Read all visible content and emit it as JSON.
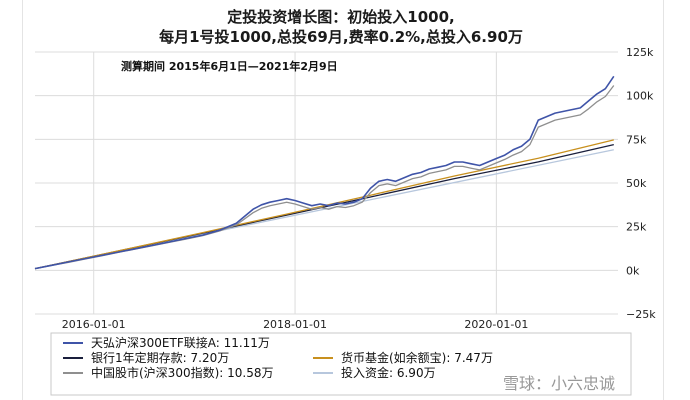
{
  "chart_data": {
    "type": "line",
    "title": [
      "定投投资增长图：初始投入1000,",
      "每月1号投1000,总投69月,费率0.2%,总投入6.90万"
    ],
    "subtitle": "测算期间 2015年6月1日—2021年2月9日",
    "xlabel": "",
    "ylabel": "",
    "x_range": [
      0,
      69.5
    ],
    "x_ticks": [
      {
        "label": "2016-01-01",
        "x": 7
      },
      {
        "label": "2018-01-01",
        "x": 31
      },
      {
        "label": "2020-01-01",
        "x": 55
      }
    ],
    "ylim": [
      -25000,
      125000
    ],
    "y_ticks": [
      {
        "label": "125k",
        "value": 125000
      },
      {
        "label": "100k",
        "value": 100000
      },
      {
        "label": "75k",
        "value": 75000
      },
      {
        "label": "50k",
        "value": 50000
      },
      {
        "label": "25k",
        "value": 25000
      },
      {
        "label": "0k",
        "value": 0
      },
      {
        "label": "−25k",
        "value": -25000
      }
    ],
    "grid": true,
    "legend_position": "bottom",
    "series": [
      {
        "name": "天弘沪深300ETF联接A: 11.11万",
        "color": "#3f54a8",
        "width": 1.6,
        "points": [
          [
            0,
            1000
          ],
          [
            2,
            2900
          ],
          [
            4,
            4800
          ],
          [
            6,
            6700
          ],
          [
            8,
            8600
          ],
          [
            10,
            10500
          ],
          [
            12,
            12400
          ],
          [
            14,
            14300
          ],
          [
            16,
            16200
          ],
          [
            18,
            18200
          ],
          [
            20,
            20200
          ],
          [
            22,
            23000
          ],
          [
            24,
            27000
          ],
          [
            25,
            31000
          ],
          [
            26,
            35000
          ],
          [
            27,
            37500
          ],
          [
            28,
            39000
          ],
          [
            29,
            40000
          ],
          [
            30,
            41000
          ],
          [
            31,
            40000
          ],
          [
            32,
            38500
          ],
          [
            33,
            37000
          ],
          [
            34,
            38000
          ],
          [
            35,
            37000
          ],
          [
            36,
            38500
          ],
          [
            37,
            38000
          ],
          [
            38,
            39000
          ],
          [
            39,
            41000
          ],
          [
            40,
            47000
          ],
          [
            41,
            51000
          ],
          [
            42,
            52000
          ],
          [
            43,
            51000
          ],
          [
            44,
            53000
          ],
          [
            45,
            55000
          ],
          [
            46,
            56000
          ],
          [
            47,
            58000
          ],
          [
            48,
            59000
          ],
          [
            49,
            60000
          ],
          [
            50,
            62000
          ],
          [
            51,
            62000
          ],
          [
            52,
            61000
          ],
          [
            53,
            60000
          ],
          [
            54,
            62000
          ],
          [
            55,
            64000
          ],
          [
            56,
            66000
          ],
          [
            57,
            69000
          ],
          [
            58,
            71000
          ],
          [
            59,
            75000
          ],
          [
            60,
            86000
          ],
          [
            61,
            88000
          ],
          [
            62,
            90000
          ],
          [
            63,
            91000
          ],
          [
            64,
            92000
          ],
          [
            65,
            93000
          ],
          [
            66,
            97000
          ],
          [
            67,
            101000
          ],
          [
            68,
            104000
          ],
          [
            69,
            111100
          ]
        ]
      },
      {
        "name": "银行1年定期存款: 7.20万",
        "color": "#1a1f3c",
        "width": 1.3,
        "points": [
          [
            0,
            1000
          ],
          [
            10,
            11100
          ],
          [
            20,
            21300
          ],
          [
            30,
            31600
          ],
          [
            40,
            42000
          ],
          [
            50,
            52500
          ],
          [
            60,
            62100
          ],
          [
            69,
            72000
          ]
        ]
      },
      {
        "name": "货币基金(如余额宝): 7.47万",
        "color": "#c8901e",
        "width": 1.3,
        "points": [
          [
            0,
            1000
          ],
          [
            10,
            11200
          ],
          [
            20,
            21600
          ],
          [
            30,
            32200
          ],
          [
            40,
            43000
          ],
          [
            50,
            54000
          ],
          [
            60,
            64200
          ],
          [
            69,
            74700
          ]
        ]
      },
      {
        "name": "中国股市(沪深300指数): 10.58万",
        "color": "#8f8f8f",
        "width": 1.3,
        "points": [
          [
            0,
            1000
          ],
          [
            2,
            2800
          ],
          [
            4,
            4600
          ],
          [
            6,
            6500
          ],
          [
            8,
            8400
          ],
          [
            10,
            10300
          ],
          [
            12,
            12200
          ],
          [
            14,
            14100
          ],
          [
            16,
            16000
          ],
          [
            18,
            17900
          ],
          [
            20,
            19900
          ],
          [
            22,
            22500
          ],
          [
            24,
            26000
          ],
          [
            25,
            29500
          ],
          [
            26,
            33000
          ],
          [
            27,
            35500
          ],
          [
            28,
            37000
          ],
          [
            29,
            38000
          ],
          [
            30,
            39000
          ],
          [
            31,
            38000
          ],
          [
            32,
            36500
          ],
          [
            33,
            35000
          ],
          [
            34,
            36000
          ],
          [
            35,
            35000
          ],
          [
            36,
            36500
          ],
          [
            37,
            36000
          ],
          [
            38,
            37000
          ],
          [
            39,
            39000
          ],
          [
            40,
            44500
          ],
          [
            41,
            48500
          ],
          [
            42,
            49500
          ],
          [
            43,
            48500
          ],
          [
            44,
            50500
          ],
          [
            45,
            52500
          ],
          [
            46,
            53500
          ],
          [
            47,
            55500
          ],
          [
            48,
            56500
          ],
          [
            49,
            57500
          ],
          [
            50,
            59500
          ],
          [
            51,
            59500
          ],
          [
            52,
            58500
          ],
          [
            53,
            57500
          ],
          [
            54,
            59500
          ],
          [
            55,
            61500
          ],
          [
            56,
            63500
          ],
          [
            57,
            66000
          ],
          [
            58,
            68000
          ],
          [
            59,
            72000
          ],
          [
            60,
            82000
          ],
          [
            61,
            84000
          ],
          [
            62,
            86000
          ],
          [
            63,
            87000
          ],
          [
            64,
            88000
          ],
          [
            65,
            89000
          ],
          [
            66,
            92500
          ],
          [
            67,
            96500
          ],
          [
            68,
            99500
          ],
          [
            69,
            105800
          ]
        ]
      },
      {
        "name": "投入资金: 6.90万",
        "color": "#b7c7dd",
        "width": 1.3,
        "points": [
          [
            0,
            1000
          ],
          [
            69,
            69000
          ]
        ]
      }
    ],
    "legend_rows": [
      [
        0
      ],
      [
        1,
        2
      ],
      [
        3,
        4
      ]
    ]
  },
  "watermark": "雪球：小六忠诚"
}
